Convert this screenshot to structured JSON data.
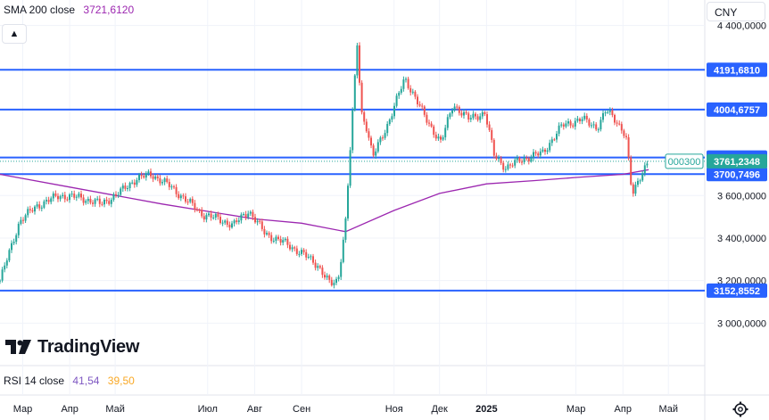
{
  "header": {
    "sma_label": "SMA 200 close",
    "sma_value": "3721,6120"
  },
  "collapse_icon": "chevron-up-icon",
  "currency": "CNY",
  "logo_text": "TradingView",
  "rsi": {
    "label": "RSI 14 close",
    "value1": "41,54",
    "value2": "39,50"
  },
  "chart_data": {
    "type": "candlestick",
    "ylim": [
      2800000,
      4520000
    ],
    "y_ticks": [
      {
        "value": 4400000,
        "label": "4 400,0000"
      },
      {
        "value": 3600000,
        "label": "3 600,0000"
      },
      {
        "value": 3400000,
        "label": "3 400,0000"
      },
      {
        "value": 3200000,
        "label": "3 200,0000"
      },
      {
        "value": 3000000,
        "label": "3 000,0000"
      }
    ],
    "x_ticks": [
      {
        "date": "2024-03-01",
        "label": "Мар"
      },
      {
        "date": "2024-04-01",
        "label": "Апр"
      },
      {
        "date": "2024-05-01",
        "label": "Май"
      },
      {
        "date": "2024-07-01",
        "label": "Июл"
      },
      {
        "date": "2024-08-01",
        "label": "Авг"
      },
      {
        "date": "2024-09-01",
        "label": "Сен"
      },
      {
        "date": "2024-11-01",
        "label": "Ноя"
      },
      {
        "date": "2024-12-01",
        "label": "Дек"
      },
      {
        "date": "2025-01-01",
        "label": "2025",
        "bold": true
      },
      {
        "date": "2025-03-01",
        "label": "Мар"
      },
      {
        "date": "2025-04-01",
        "label": "Апр"
      },
      {
        "date": "2025-05-01",
        "label": "Май"
      }
    ],
    "x_range": [
      "2024-02-15",
      "2025-05-25"
    ],
    "horizontal_levels": [
      {
        "value": 4191681,
        "label": "4191,6810"
      },
      {
        "value": 4004676,
        "label": "4004,6757"
      },
      {
        "value": 3778990,
        "label": "3778,9905"
      },
      {
        "value": 3700750,
        "label": "3700,7496"
      },
      {
        "value": 3152855,
        "label": "3152,8552"
      }
    ],
    "last_price": {
      "value": 3761235,
      "label": "3761,2348",
      "countdown": "000300"
    },
    "price_path": [
      [
        "2024-02-15",
        3200000
      ],
      [
        "2024-02-28",
        3480000
      ],
      [
        "2024-03-10",
        3550000
      ],
      [
        "2024-03-25",
        3600000
      ],
      [
        "2024-04-08",
        3590000
      ],
      [
        "2024-04-22",
        3560000
      ],
      [
        "2024-05-05",
        3620000
      ],
      [
        "2024-05-15",
        3680000
      ],
      [
        "2024-05-25",
        3700000
      ],
      [
        "2024-06-05",
        3650000
      ],
      [
        "2024-06-15",
        3590000
      ],
      [
        "2024-06-28",
        3510000
      ],
      [
        "2024-07-08",
        3490000
      ],
      [
        "2024-07-18",
        3460000
      ],
      [
        "2024-07-28",
        3530000
      ],
      [
        "2024-08-08",
        3420000
      ],
      [
        "2024-08-20",
        3380000
      ],
      [
        "2024-09-01",
        3330000
      ],
      [
        "2024-09-12",
        3270000
      ],
      [
        "2024-09-20",
        3180000
      ],
      [
        "2024-09-25",
        3200000
      ],
      [
        "2024-09-30",
        3480000
      ],
      [
        "2024-10-02",
        3700000
      ],
      [
        "2024-10-08",
        4350000
      ],
      [
        "2024-10-10",
        4000000
      ],
      [
        "2024-10-14",
        3920000
      ],
      [
        "2024-10-18",
        3780000
      ],
      [
        "2024-10-28",
        3940000
      ],
      [
        "2024-11-08",
        4150000
      ],
      [
        "2024-11-13",
        4090000
      ],
      [
        "2024-11-22",
        3960000
      ],
      [
        "2024-12-02",
        3850000
      ],
      [
        "2024-12-10",
        4030000
      ],
      [
        "2024-12-20",
        3960000
      ],
      [
        "2024-12-31",
        3990000
      ],
      [
        "2025-01-06",
        3790000
      ],
      [
        "2025-01-14",
        3730000
      ],
      [
        "2025-01-24",
        3770000
      ],
      [
        "2025-02-07",
        3800000
      ],
      [
        "2025-02-20",
        3930000
      ],
      [
        "2025-03-05",
        3960000
      ],
      [
        "2025-03-15",
        3920000
      ],
      [
        "2025-03-21",
        4000000
      ],
      [
        "2025-03-28",
        3950000
      ],
      [
        "2025-04-03",
        3880000
      ],
      [
        "2025-04-07",
        3600000
      ],
      [
        "2025-04-10",
        3650000
      ],
      [
        "2025-04-14",
        3720000
      ],
      [
        "2025-04-18",
        3761235
      ]
    ],
    "sma_path": [
      [
        "2024-02-15",
        3700000
      ],
      [
        "2024-04-01",
        3640000
      ],
      [
        "2024-06-01",
        3560000
      ],
      [
        "2024-08-01",
        3490000
      ],
      [
        "2024-09-01",
        3470000
      ],
      [
        "2024-09-30",
        3430000
      ],
      [
        "2024-11-01",
        3530000
      ],
      [
        "2024-12-01",
        3610000
      ],
      [
        "2025-01-01",
        3655000
      ],
      [
        "2025-02-01",
        3670000
      ],
      [
        "2025-03-01",
        3685000
      ],
      [
        "2025-04-01",
        3700000
      ],
      [
        "2025-04-18",
        3721612
      ]
    ]
  }
}
